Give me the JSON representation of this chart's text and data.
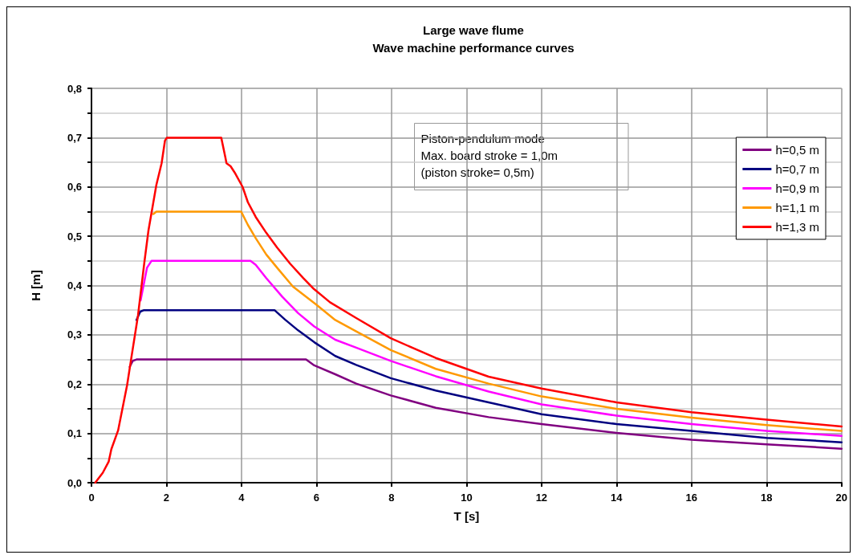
{
  "chart_data": {
    "type": "line",
    "title": "Large wave flume\nWave machine performance curves",
    "xlabel": "T [s]",
    "ylabel": "H [m]",
    "annotations": [
      "Piston-pendulum mode",
      "Max. board stroke = 1,0m",
      "(piston stroke= 0,5m)"
    ],
    "xlim": [
      0,
      20
    ],
    "xticks": [
      0,
      2,
      4,
      6,
      8,
      10,
      12,
      14,
      16,
      18,
      20
    ],
    "ylim": [
      0,
      0.8
    ],
    "yticks": [
      {
        "value": 0,
        "label": "0,0"
      },
      {
        "value": 0.05,
        "label": null
      },
      {
        "value": 0.1,
        "label": "0,1"
      },
      {
        "value": 0.15,
        "label": null
      },
      {
        "value": 0.2,
        "label": "0,2"
      },
      {
        "value": 0.25,
        "label": null
      },
      {
        "value": 0.3,
        "label": "0,3"
      },
      {
        "value": 0.35,
        "label": null
      },
      {
        "value": 0.4,
        "label": "0,4"
      },
      {
        "value": 0.45,
        "label": null
      },
      {
        "value": 0.5,
        "label": "0,5"
      },
      {
        "value": 0.55,
        "label": null
      },
      {
        "value": 0.6,
        "label": "0,6"
      },
      {
        "value": 0.65,
        "label": null
      },
      {
        "value": 0.7,
        "label": "0,7"
      },
      {
        "value": 0.75,
        "label": null
      },
      {
        "value": 0.8,
        "label": "0,8"
      }
    ],
    "grid": true,
    "legend": "top right",
    "marker": "none",
    "line_style": "solid",
    "series": [
      {
        "name": "h=0,5 m",
        "color": "#800080",
        "x": [
          1.02,
          1.1,
          1.2,
          5.72,
          5.94,
          6.5,
          7.06,
          7.98,
          9.18,
          10.59,
          12,
          14,
          16,
          18,
          20
        ],
        "values": [
          0.235,
          0.247,
          0.25,
          0.25,
          0.238,
          0.22,
          0.201,
          0.177,
          0.152,
          0.133,
          0.119,
          0.101,
          0.087,
          0.078,
          0.069
        ]
      },
      {
        "name": "h=0,7 m",
        "color": "#000080",
        "x": [
          1.2,
          1.3,
          1.4,
          4.88,
          5.16,
          5.51,
          5.94,
          6.5,
          7.06,
          7.98,
          9.18,
          10.59,
          12,
          14,
          16,
          18,
          20
        ],
        "values": [
          0.33,
          0.347,
          0.35,
          0.35,
          0.331,
          0.309,
          0.285,
          0.257,
          0.239,
          0.212,
          0.187,
          0.163,
          0.139,
          0.119,
          0.105,
          0.091,
          0.082
        ]
      },
      {
        "name": "h=0,9 m",
        "color": "#ff00ff",
        "x": [
          1.31,
          1.48,
          1.6,
          4.24,
          4.38,
          4.66,
          5.09,
          5.51,
          5.94,
          6.5,
          7.06,
          7.98,
          9.18,
          10.59,
          12,
          14,
          16,
          18,
          20
        ],
        "values": [
          0.37,
          0.436,
          0.45,
          0.45,
          0.442,
          0.415,
          0.377,
          0.344,
          0.317,
          0.29,
          0.274,
          0.247,
          0.216,
          0.185,
          0.159,
          0.136,
          0.119,
          0.105,
          0.095
        ]
      },
      {
        "name": "h=1,1 m",
        "color": "#ff9900",
        "x": [
          1.65,
          1.73,
          3.99,
          4.17,
          4.38,
          4.66,
          4.95,
          5.37,
          6,
          6.5,
          7.06,
          7.98,
          9.18,
          10.59,
          12,
          14,
          16,
          18,
          20
        ],
        "values": [
          0.545,
          0.55,
          0.55,
          0.523,
          0.496,
          0.463,
          0.436,
          0.398,
          0.361,
          0.33,
          0.307,
          0.269,
          0.231,
          0.201,
          0.175,
          0.15,
          0.132,
          0.117,
          0.105
        ]
      },
      {
        "name": "h=1,3 m",
        "color": "#ff0000",
        "x": [
          0.1,
          0.3,
          0.46,
          0.53,
          0.71,
          0.95,
          1.06,
          1.24,
          1.41,
          1.52,
          1.73,
          1.87,
          1.96,
          2.01,
          3.46,
          3.57,
          3.6,
          3.71,
          3.82,
          4.03,
          4.17,
          4.38,
          4.66,
          4.95,
          5.3,
          5.65,
          5.93,
          6.36,
          7.06,
          7.98,
          9.18,
          10.59,
          12,
          14,
          16,
          18,
          20
        ],
        "values": [
          0,
          0.02,
          0.043,
          0.068,
          0.106,
          0.198,
          0.252,
          0.339,
          0.447,
          0.512,
          0.604,
          0.648,
          0.694,
          0.7,
          0.7,
          0.66,
          0.648,
          0.642,
          0.629,
          0.6,
          0.569,
          0.539,
          0.507,
          0.477,
          0.444,
          0.415,
          0.393,
          0.366,
          0.334,
          0.293,
          0.253,
          0.215,
          0.191,
          0.163,
          0.143,
          0.128,
          0.114
        ]
      }
    ]
  }
}
